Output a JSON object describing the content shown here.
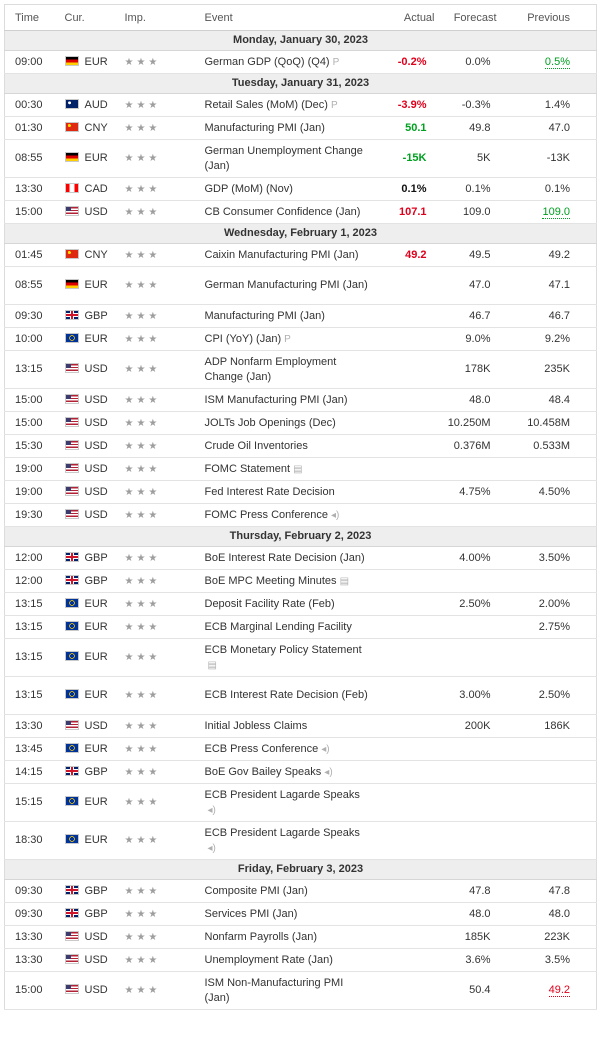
{
  "headers": {
    "time": "Time",
    "currency": "Cur.",
    "importance": "Imp.",
    "event": "Event",
    "actual": "Actual",
    "forecast": "Forecast",
    "previous": "Previous"
  },
  "colors": {
    "actual_better": "#00a020",
    "actual_worse": "#e0001b",
    "importance_stars": "#9e9e9e",
    "date_row_bg": "#eeeeee"
  },
  "rows": [
    {
      "kind": "date",
      "label": "Monday, January 30, 2023"
    },
    {
      "kind": "event",
      "time": "09:00",
      "flag": "de",
      "currency": "EUR",
      "stars": "★★★",
      "event": "German GDP (QoQ) (Q4)",
      "icon": "preliminary-icon",
      "icon_glyph": "P",
      "actual": "-0.2%",
      "actual_style": "red",
      "forecast": "0.0%",
      "previous": "0.5%",
      "previous_style": "green",
      "tall": false
    },
    {
      "kind": "date",
      "label": "Tuesday, January 31, 2023"
    },
    {
      "kind": "event",
      "time": "00:30",
      "flag": "au",
      "currency": "AUD",
      "stars": "★★★",
      "event": "Retail Sales (MoM) (Dec)",
      "icon": "preliminary-icon",
      "icon_glyph": "P",
      "actual": "-3.9%",
      "actual_style": "red",
      "forecast": "-0.3%",
      "previous": "1.4%",
      "previous_style": "",
      "tall": false
    },
    {
      "kind": "event",
      "time": "01:30",
      "flag": "cn",
      "currency": "CNY",
      "stars": "★★★",
      "event": "Manufacturing PMI (Jan)",
      "icon": "",
      "icon_glyph": "",
      "actual": "50.1",
      "actual_style": "green",
      "forecast": "49.8",
      "previous": "47.0",
      "previous_style": "",
      "tall": false
    },
    {
      "kind": "event",
      "time": "08:55",
      "flag": "de",
      "currency": "EUR",
      "stars": "★★★",
      "event": "German Unemployment Change (Jan)",
      "icon": "",
      "icon_glyph": "",
      "actual": "-15K",
      "actual_style": "green",
      "forecast": "5K",
      "previous": "-13K",
      "previous_style": "",
      "tall": true
    },
    {
      "kind": "event",
      "time": "13:30",
      "flag": "ca",
      "currency": "CAD",
      "stars": "★★★",
      "event": "GDP (MoM) (Nov)",
      "icon": "",
      "icon_glyph": "",
      "actual": "0.1%",
      "actual_style": "bold",
      "forecast": "0.1%",
      "previous": "0.1%",
      "previous_style": "",
      "tall": false
    },
    {
      "kind": "event",
      "time": "15:00",
      "flag": "us",
      "currency": "USD",
      "stars": "★★★",
      "event": "CB Consumer Confidence (Jan)",
      "icon": "",
      "icon_glyph": "",
      "actual": "107.1",
      "actual_style": "red",
      "forecast": "109.0",
      "previous": "109.0",
      "previous_style": "green",
      "tall": false
    },
    {
      "kind": "date",
      "label": "Wednesday, February 1, 2023"
    },
    {
      "kind": "event",
      "time": "01:45",
      "flag": "cn",
      "currency": "CNY",
      "stars": "★★★",
      "event": "Caixin Manufacturing PMI (Jan)",
      "icon": "",
      "icon_glyph": "",
      "actual": "49.2",
      "actual_style": "red",
      "forecast": "49.5",
      "previous": "49.2",
      "previous_style": "",
      "tall": false
    },
    {
      "kind": "event",
      "time": "08:55",
      "flag": "de",
      "currency": "EUR",
      "stars": "★★★",
      "event": "German Manufacturing PMI (Jan)",
      "icon": "",
      "icon_glyph": "",
      "actual": "",
      "actual_style": "",
      "forecast": "47.0",
      "previous": "47.1",
      "previous_style": "",
      "tall": true
    },
    {
      "kind": "event",
      "time": "09:30",
      "flag": "gb",
      "currency": "GBP",
      "stars": "★★★",
      "event": "Manufacturing PMI (Jan)",
      "icon": "",
      "icon_glyph": "",
      "actual": "",
      "actual_style": "",
      "forecast": "46.7",
      "previous": "46.7",
      "previous_style": "",
      "tall": false
    },
    {
      "kind": "event",
      "time": "10:00",
      "flag": "eu",
      "currency": "EUR",
      "stars": "★★★",
      "event": "CPI (YoY) (Jan)",
      "icon": "preliminary-icon",
      "icon_glyph": "P",
      "actual": "",
      "actual_style": "",
      "forecast": "9.0%",
      "previous": "9.2%",
      "previous_style": "",
      "tall": false
    },
    {
      "kind": "event",
      "time": "13:15",
      "flag": "us",
      "currency": "USD",
      "stars": "★★★",
      "event": "ADP Nonfarm Employment Change (Jan)",
      "icon": "",
      "icon_glyph": "",
      "actual": "",
      "actual_style": "",
      "forecast": "178K",
      "previous": "235K",
      "previous_style": "",
      "tall": true
    },
    {
      "kind": "event",
      "time": "15:00",
      "flag": "us",
      "currency": "USD",
      "stars": "★★★",
      "event": "ISM Manufacturing PMI (Jan)",
      "icon": "",
      "icon_glyph": "",
      "actual": "",
      "actual_style": "",
      "forecast": "48.0",
      "previous": "48.4",
      "previous_style": "",
      "tall": false
    },
    {
      "kind": "event",
      "time": "15:00",
      "flag": "us",
      "currency": "USD",
      "stars": "★★★",
      "event": "JOLTs Job Openings (Dec)",
      "icon": "",
      "icon_glyph": "",
      "actual": "",
      "actual_style": "",
      "forecast": "10.250M",
      "previous": "10.458M",
      "previous_style": "",
      "tall": false
    },
    {
      "kind": "event",
      "time": "15:30",
      "flag": "us",
      "currency": "USD",
      "stars": "★★★",
      "event": "Crude Oil Inventories",
      "icon": "",
      "icon_glyph": "",
      "actual": "",
      "actual_style": "",
      "forecast": "0.376M",
      "previous": "0.533M",
      "previous_style": "",
      "tall": false
    },
    {
      "kind": "event",
      "time": "19:00",
      "flag": "us",
      "currency": "USD",
      "stars": "★★★",
      "event": "FOMC Statement",
      "icon": "document-icon",
      "icon_glyph": "▤",
      "actual": "",
      "actual_style": "",
      "forecast": "",
      "previous": "",
      "previous_style": "",
      "tall": false
    },
    {
      "kind": "event",
      "time": "19:00",
      "flag": "us",
      "currency": "USD",
      "stars": "★★★",
      "event": "Fed Interest Rate Decision",
      "icon": "",
      "icon_glyph": "",
      "actual": "",
      "actual_style": "",
      "forecast": "4.75%",
      "previous": "4.50%",
      "previous_style": "",
      "tall": false
    },
    {
      "kind": "event",
      "time": "19:30",
      "flag": "us",
      "currency": "USD",
      "stars": "★★★",
      "event": "FOMC Press Conference",
      "icon": "speaker-icon",
      "icon_glyph": "◂)",
      "actual": "",
      "actual_style": "",
      "forecast": "",
      "previous": "",
      "previous_style": "",
      "tall": false
    },
    {
      "kind": "date",
      "label": "Thursday, February 2, 2023"
    },
    {
      "kind": "event",
      "time": "12:00",
      "flag": "gb",
      "currency": "GBP",
      "stars": "★★★",
      "event": "BoE Interest Rate Decision (Jan)",
      "icon": "",
      "icon_glyph": "",
      "actual": "",
      "actual_style": "",
      "forecast": "4.00%",
      "previous": "3.50%",
      "previous_style": "",
      "tall": false
    },
    {
      "kind": "event",
      "time": "12:00",
      "flag": "gb",
      "currency": "GBP",
      "stars": "★★★",
      "event": "BoE MPC Meeting Minutes",
      "icon": "document-icon",
      "icon_glyph": "▤",
      "actual": "",
      "actual_style": "",
      "forecast": "",
      "previous": "",
      "previous_style": "",
      "tall": false
    },
    {
      "kind": "event",
      "time": "13:15",
      "flag": "eu",
      "currency": "EUR",
      "stars": "★★★",
      "event": "Deposit Facility Rate (Feb)",
      "icon": "",
      "icon_glyph": "",
      "actual": "",
      "actual_style": "",
      "forecast": "2.50%",
      "previous": "2.00%",
      "previous_style": "",
      "tall": false
    },
    {
      "kind": "event",
      "time": "13:15",
      "flag": "eu",
      "currency": "EUR",
      "stars": "★★★",
      "event": "ECB Marginal Lending Facility",
      "icon": "",
      "icon_glyph": "",
      "actual": "",
      "actual_style": "",
      "forecast": "",
      "previous": "2.75%",
      "previous_style": "",
      "tall": false
    },
    {
      "kind": "event",
      "time": "13:15",
      "flag": "eu",
      "currency": "EUR",
      "stars": "★★★",
      "event": "ECB Monetary Policy Statement",
      "icon": "document-icon",
      "icon_glyph": "▤",
      "actual": "",
      "actual_style": "",
      "forecast": "",
      "previous": "",
      "previous_style": "",
      "tall": true
    },
    {
      "kind": "event",
      "time": "13:15",
      "flag": "eu",
      "currency": "EUR",
      "stars": "★★★",
      "event": "ECB Interest Rate Decision (Feb)",
      "icon": "",
      "icon_glyph": "",
      "actual": "",
      "actual_style": "",
      "forecast": "3.00%",
      "previous": "2.50%",
      "previous_style": "",
      "tall": true
    },
    {
      "kind": "event",
      "time": "13:30",
      "flag": "us",
      "currency": "USD",
      "stars": "★★★",
      "event": "Initial Jobless Claims",
      "icon": "",
      "icon_glyph": "",
      "actual": "",
      "actual_style": "",
      "forecast": "200K",
      "previous": "186K",
      "previous_style": "",
      "tall": false
    },
    {
      "kind": "event",
      "time": "13:45",
      "flag": "eu",
      "currency": "EUR",
      "stars": "★★★",
      "event": "ECB Press Conference",
      "icon": "speaker-icon",
      "icon_glyph": "◂)",
      "actual": "",
      "actual_style": "",
      "forecast": "",
      "previous": "",
      "previous_style": "",
      "tall": false
    },
    {
      "kind": "event",
      "time": "14:15",
      "flag": "gb",
      "currency": "GBP",
      "stars": "★★★",
      "event": "BoE Gov Bailey Speaks",
      "icon": "speaker-icon",
      "icon_glyph": "◂)",
      "actual": "",
      "actual_style": "",
      "forecast": "",
      "previous": "",
      "previous_style": "",
      "tall": false
    },
    {
      "kind": "event",
      "time": "15:15",
      "flag": "eu",
      "currency": "EUR",
      "stars": "★★★",
      "event": "ECB President Lagarde Speaks",
      "icon": "speaker-icon",
      "icon_glyph": "◂)",
      "actual": "",
      "actual_style": "",
      "forecast": "",
      "previous": "",
      "previous_style": "",
      "tall": true
    },
    {
      "kind": "event",
      "time": "18:30",
      "flag": "eu",
      "currency": "EUR",
      "stars": "★★★",
      "event": "ECB President Lagarde Speaks",
      "icon": "speaker-icon",
      "icon_glyph": "◂)",
      "actual": "",
      "actual_style": "",
      "forecast": "",
      "previous": "",
      "previous_style": "",
      "tall": true
    },
    {
      "kind": "date",
      "label": "Friday, February 3, 2023"
    },
    {
      "kind": "event",
      "time": "09:30",
      "flag": "gb",
      "currency": "GBP",
      "stars": "★★★",
      "event": "Composite PMI (Jan)",
      "icon": "",
      "icon_glyph": "",
      "actual": "",
      "actual_style": "",
      "forecast": "47.8",
      "previous": "47.8",
      "previous_style": "",
      "tall": false
    },
    {
      "kind": "event",
      "time": "09:30",
      "flag": "gb",
      "currency": "GBP",
      "stars": "★★★",
      "event": "Services PMI (Jan)",
      "icon": "",
      "icon_glyph": "",
      "actual": "",
      "actual_style": "",
      "forecast": "48.0",
      "previous": "48.0",
      "previous_style": "",
      "tall": false
    },
    {
      "kind": "event",
      "time": "13:30",
      "flag": "us",
      "currency": "USD",
      "stars": "★★★",
      "event": "Nonfarm Payrolls (Jan)",
      "icon": "",
      "icon_glyph": "",
      "actual": "",
      "actual_style": "",
      "forecast": "185K",
      "previous": "223K",
      "previous_style": "",
      "tall": false
    },
    {
      "kind": "event",
      "time": "13:30",
      "flag": "us",
      "currency": "USD",
      "stars": "★★★",
      "event": "Unemployment Rate (Jan)",
      "icon": "",
      "icon_glyph": "",
      "actual": "",
      "actual_style": "",
      "forecast": "3.6%",
      "previous": "3.5%",
      "previous_style": "",
      "tall": false
    },
    {
      "kind": "event",
      "time": "15:00",
      "flag": "us",
      "currency": "USD",
      "stars": "★★★",
      "event": "ISM Non-Manufacturing PMI (Jan)",
      "icon": "",
      "icon_glyph": "",
      "actual": "",
      "actual_style": "",
      "forecast": "50.4",
      "previous": "49.2",
      "previous_style": "red",
      "tall": true
    }
  ]
}
